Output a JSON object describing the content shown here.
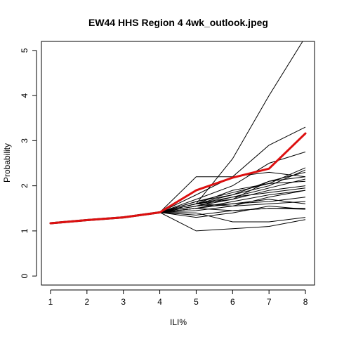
{
  "chart_data": {
    "type": "line",
    "title": "EW44 HHS Region 4 4wk_outlook.jpeg",
    "xlabel": "ILI%",
    "ylabel": "Probability",
    "x": [
      1,
      2,
      3,
      4,
      5,
      6,
      7,
      8
    ],
    "xlim": [
      0.75,
      8.25
    ],
    "ylim": [
      -0.2,
      5.2
    ],
    "x_ticks": [
      1,
      2,
      3,
      4,
      5,
      6,
      7,
      8
    ],
    "y_ticks": [
      0,
      1,
      2,
      3,
      4,
      5
    ],
    "observed": [
      1.17,
      1.24,
      1.3,
      1.41
    ],
    "observed_color": "#000000",
    "forecast_color": "#000000",
    "highlight_color": "#dd1010",
    "highlight": [
      1.17,
      1.24,
      1.3,
      1.41,
      1.9,
      2.18,
      2.38,
      3.16
    ],
    "forecasts": [
      [
        1.41,
        1.6,
        2.6,
        4.0,
        5.3
      ],
      [
        1.41,
        1.8,
        2.2,
        2.9,
        3.3
      ],
      [
        1.41,
        2.2,
        2.2,
        2.3,
        2.2
      ],
      [
        1.41,
        1.65,
        1.85,
        2.05,
        2.4
      ],
      [
        1.41,
        1.6,
        1.8,
        2.1,
        2.3
      ],
      [
        1.41,
        1.7,
        2.0,
        2.5,
        2.75
      ],
      [
        1.41,
        1.55,
        1.75,
        1.95,
        2.15
      ],
      [
        1.41,
        1.6,
        1.7,
        1.9,
        2.0
      ],
      [
        1.41,
        1.5,
        1.65,
        1.8,
        1.9
      ],
      [
        1.41,
        1.6,
        1.55,
        1.75,
        1.9
      ],
      [
        1.41,
        1.55,
        1.6,
        1.65,
        1.75
      ],
      [
        1.41,
        1.5,
        1.6,
        1.7,
        1.6
      ],
      [
        1.41,
        1.45,
        1.55,
        1.6,
        1.65
      ],
      [
        1.41,
        1.35,
        1.45,
        1.5,
        1.5
      ],
      [
        1.41,
        1.3,
        1.4,
        1.55,
        1.48
      ],
      [
        1.41,
        1.5,
        1.45,
        1.5,
        1.48
      ],
      [
        1.41,
        1.4,
        1.2,
        1.2,
        1.3
      ],
      [
        1.41,
        1.0,
        1.05,
        1.1,
        1.25
      ],
      [
        1.41,
        1.55,
        1.7,
        2.1,
        2.2
      ],
      [
        1.41,
        1.6,
        1.9,
        2.05,
        2.1
      ],
      [
        1.41,
        1.65,
        1.8,
        2.0,
        2.35
      ],
      [
        1.41,
        1.6,
        1.75,
        1.85,
        1.95
      ]
    ]
  }
}
